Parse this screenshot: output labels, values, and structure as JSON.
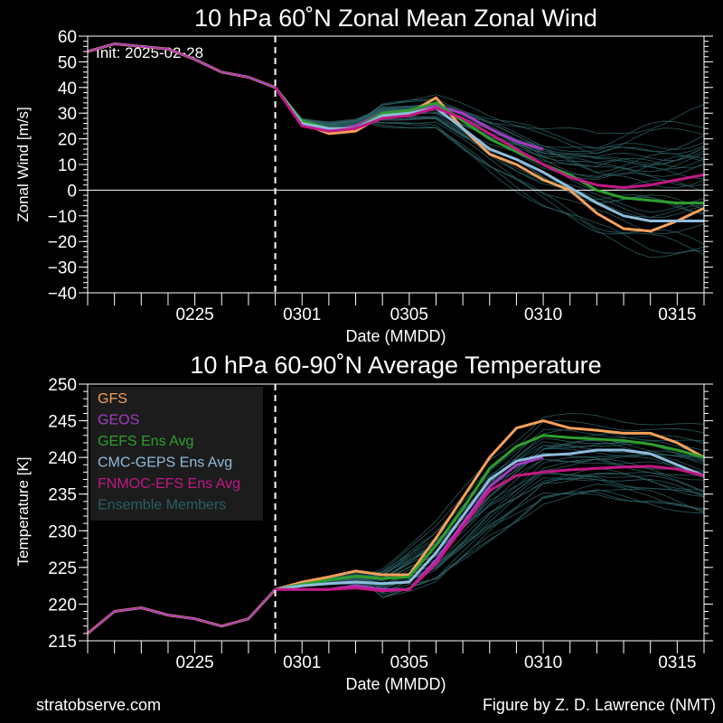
{
  "colors": {
    "background": "#000000",
    "gfs": "#f4a05a",
    "geos": "#a23bbf",
    "gefs": "#2e9e2e",
    "cmc": "#8fbcdc",
    "fnmoc": "#c21885",
    "members": "#2c5f63",
    "legend_bg": "#1c1c1c"
  },
  "footer": {
    "left": "stratobserve.com",
    "right": "Figure by Z. D. Lawrence (NMT)"
  },
  "chart_data": [
    {
      "type": "line",
      "title": "10 hPa  60˚N   Zonal Mean Zonal Wind",
      "xlabel": "Date (MMDD)",
      "ylabel": "Zonal  Wind   [m/s]",
      "annotation": "Init: 2025-02-28",
      "x_start": "2025-02-21",
      "x_end": "2025-03-16",
      "init_date": "2025-02-28",
      "x_ticks": [
        "0225",
        "0301",
        "0305",
        "0310",
        "0315"
      ],
      "ylim": [
        -40,
        60
      ],
      "y_ticks": [
        -40,
        -30,
        -20,
        -10,
        0,
        10,
        20,
        30,
        40,
        50,
        60
      ],
      "zero_line": true,
      "history": {
        "x": [
          "2025-02-21",
          "2025-02-22",
          "2025-02-23",
          "2025-02-24",
          "2025-02-25",
          "2025-02-26",
          "2025-02-27",
          "2025-02-28"
        ],
        "values": [
          54,
          57,
          56,
          55,
          51,
          46,
          44,
          40
        ]
      },
      "series": [
        {
          "name": "GFS",
          "color_key": "gfs",
          "x": [
            "2025-02-28",
            "2025-03-01",
            "2025-03-02",
            "2025-03-03",
            "2025-03-04",
            "2025-03-05",
            "2025-03-06",
            "2025-03-07",
            "2025-03-08",
            "2025-03-09",
            "2025-03-10",
            "2025-03-11",
            "2025-03-12",
            "2025-03-13",
            "2025-03-14",
            "2025-03-15",
            "2025-03-16"
          ],
          "values": [
            40,
            26,
            22,
            23,
            29,
            30,
            36,
            24,
            14,
            10,
            4,
            0,
            -9,
            -15,
            -16,
            -12,
            -7
          ]
        },
        {
          "name": "GEOS",
          "color_key": "geos",
          "x": [
            "2025-02-28",
            "2025-03-01",
            "2025-03-02",
            "2025-03-03",
            "2025-03-04",
            "2025-03-05",
            "2025-03-06",
            "2025-03-07",
            "2025-03-08",
            "2025-03-09",
            "2025-03-10"
          ],
          "values": [
            40,
            26,
            23,
            25,
            30,
            31,
            33,
            30,
            24,
            19,
            16
          ]
        },
        {
          "name": "GEFS Ens Avg",
          "color_key": "gefs",
          "x": [
            "2025-02-28",
            "2025-03-01",
            "2025-03-02",
            "2025-03-03",
            "2025-03-04",
            "2025-03-05",
            "2025-03-06",
            "2025-03-07",
            "2025-03-08",
            "2025-03-09",
            "2025-03-10",
            "2025-03-11",
            "2025-03-12",
            "2025-03-13",
            "2025-03-14",
            "2025-03-15",
            "2025-03-16"
          ],
          "values": [
            40,
            27,
            24,
            24,
            30,
            31,
            34,
            27,
            20,
            15,
            10,
            6,
            0,
            -3,
            -4,
            -5,
            -5
          ]
        },
        {
          "name": "CMC-GEPS Ens Avg",
          "color_key": "cmc",
          "x": [
            "2025-02-28",
            "2025-03-01",
            "2025-03-02",
            "2025-03-03",
            "2025-03-04",
            "2025-03-05",
            "2025-03-06",
            "2025-03-07",
            "2025-03-08",
            "2025-03-09",
            "2025-03-10",
            "2025-03-11",
            "2025-03-12",
            "2025-03-13",
            "2025-03-14",
            "2025-03-15",
            "2025-03-16"
          ],
          "values": [
            40,
            26,
            24,
            24,
            29,
            30,
            32,
            24,
            16,
            12,
            7,
            1,
            -5,
            -10,
            -12,
            -12,
            -12
          ]
        },
        {
          "name": "FNMOC-EFS Ens Avg",
          "color_key": "fnmoc",
          "x": [
            "2025-02-28",
            "2025-03-01",
            "2025-03-02",
            "2025-03-03",
            "2025-03-04",
            "2025-03-05",
            "2025-03-06",
            "2025-03-07",
            "2025-03-08",
            "2025-03-09",
            "2025-03-10",
            "2025-03-11",
            "2025-03-12",
            "2025-03-13",
            "2025-03-14",
            "2025-03-15",
            "2025-03-16"
          ],
          "values": [
            40,
            25,
            23,
            24,
            28,
            29,
            32,
            28,
            22,
            16,
            10,
            5,
            2,
            1,
            2,
            4,
            6
          ]
        }
      ],
      "members_spread": {
        "x": [
          "2025-03-04",
          "2025-03-06",
          "2025-03-08",
          "2025-03-10",
          "2025-03-12",
          "2025-03-14",
          "2025-03-16"
        ],
        "low": [
          24,
          22,
          5,
          -10,
          -22,
          -30,
          -34
        ],
        "high": [
          34,
          37,
          30,
          25,
          22,
          28,
          32
        ]
      }
    },
    {
      "type": "line",
      "title": "10 hPa  60-90˚N Average Temperature",
      "xlabel": "Date (MMDD)",
      "ylabel": "Temperature  [K]",
      "x_start": "2025-02-21",
      "x_end": "2025-03-16",
      "init_date": "2025-02-28",
      "x_ticks": [
        "0225",
        "0301",
        "0305",
        "0310",
        "0315"
      ],
      "ylim": [
        215,
        250
      ],
      "y_ticks": [
        215,
        220,
        225,
        230,
        235,
        240,
        245,
        250
      ],
      "legend_position": "top-left",
      "history": {
        "x": [
          "2025-02-21",
          "2025-02-22",
          "2025-02-23",
          "2025-02-24",
          "2025-02-25",
          "2025-02-26",
          "2025-02-27",
          "2025-02-28"
        ],
        "values": [
          216,
          219,
          219.5,
          218.5,
          218,
          217,
          218,
          222
        ]
      },
      "series": [
        {
          "name": "GFS",
          "color_key": "gfs",
          "x": [
            "2025-02-28",
            "2025-03-01",
            "2025-03-02",
            "2025-03-03",
            "2025-03-04",
            "2025-03-05",
            "2025-03-06",
            "2025-03-07",
            "2025-03-08",
            "2025-03-09",
            "2025-03-10",
            "2025-03-11",
            "2025-03-12",
            "2025-03-13",
            "2025-03-14",
            "2025-03-15",
            "2025-03-16"
          ],
          "values": [
            222,
            223,
            223.7,
            224.5,
            224,
            224,
            229,
            234.5,
            240,
            244,
            245,
            244,
            243.7,
            243.3,
            243.3,
            242,
            240
          ]
        },
        {
          "name": "GEOS",
          "color_key": "geos",
          "x": [
            "2025-02-28",
            "2025-03-01",
            "2025-03-02",
            "2025-03-03",
            "2025-03-04",
            "2025-03-05",
            "2025-03-06",
            "2025-03-07",
            "2025-03-08",
            "2025-03-09",
            "2025-03-10"
          ],
          "values": [
            222,
            222,
            222,
            222.5,
            222,
            222,
            226,
            231,
            236,
            239,
            240
          ]
        },
        {
          "name": "GEFS Ens Avg",
          "color_key": "gefs",
          "x": [
            "2025-02-28",
            "2025-03-01",
            "2025-03-02",
            "2025-03-03",
            "2025-03-04",
            "2025-03-05",
            "2025-03-06",
            "2025-03-07",
            "2025-03-08",
            "2025-03-09",
            "2025-03-10",
            "2025-03-11",
            "2025-03-12",
            "2025-03-13",
            "2025-03-14",
            "2025-03-15",
            "2025-03-16"
          ],
          "values": [
            222,
            222.7,
            223.3,
            223.8,
            223.5,
            223.7,
            228,
            233,
            238.5,
            241.5,
            243,
            242.7,
            242.5,
            242.3,
            241.8,
            241,
            240
          ]
        },
        {
          "name": "CMC-GEPS Ens Avg",
          "color_key": "cmc",
          "x": [
            "2025-02-28",
            "2025-03-01",
            "2025-03-02",
            "2025-03-03",
            "2025-03-04",
            "2025-03-05",
            "2025-03-06",
            "2025-03-07",
            "2025-03-08",
            "2025-03-09",
            "2025-03-10",
            "2025-03-11",
            "2025-03-12",
            "2025-03-13",
            "2025-03-14",
            "2025-03-15",
            "2025-03-16"
          ],
          "values": [
            222,
            222.5,
            222.8,
            223,
            222.8,
            223,
            227,
            232,
            237,
            239.5,
            240.3,
            240.5,
            241,
            241,
            240.5,
            239,
            237.5
          ]
        },
        {
          "name": "FNMOC-EFS Ens Avg",
          "color_key": "fnmoc",
          "x": [
            "2025-02-28",
            "2025-03-01",
            "2025-03-02",
            "2025-03-03",
            "2025-03-04",
            "2025-03-05",
            "2025-03-06",
            "2025-03-07",
            "2025-03-08",
            "2025-03-09",
            "2025-03-10",
            "2025-03-11",
            "2025-03-12",
            "2025-03-13",
            "2025-03-14",
            "2025-03-15",
            "2025-03-16"
          ],
          "values": [
            222,
            222,
            222,
            222.2,
            221.8,
            222,
            225.5,
            230.5,
            235.5,
            237.5,
            238,
            238.3,
            238.5,
            238.7,
            238.8,
            238.4,
            237.5
          ]
        }
      ],
      "members_spread": {
        "x": [
          "2025-03-04",
          "2025-03-06",
          "2025-03-08",
          "2025-03-10",
          "2025-03-12",
          "2025-03-14",
          "2025-03-16"
        ],
        "low": [
          221,
          223,
          229,
          234,
          235,
          234,
          232
        ],
        "high": [
          225,
          231,
          240,
          245.5,
          245.5,
          245,
          244
        ]
      },
      "members_label": "Ensemble Members"
    }
  ]
}
